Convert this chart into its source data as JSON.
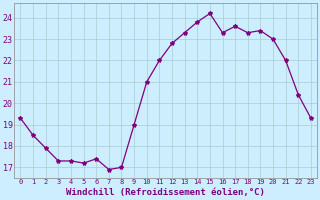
{
  "x": [
    0,
    1,
    2,
    3,
    4,
    5,
    6,
    7,
    8,
    9,
    10,
    11,
    12,
    13,
    14,
    15,
    16,
    17,
    18,
    19,
    20,
    21,
    22,
    23
  ],
  "y": [
    19.3,
    18.5,
    17.9,
    17.3,
    17.3,
    17.2,
    17.4,
    16.9,
    17.0,
    19.0,
    21.0,
    22.0,
    22.8,
    23.3,
    23.8,
    24.2,
    23.3,
    23.6,
    23.3,
    23.4,
    23.0,
    22.0,
    20.4,
    19.3
  ],
  "line_color": "#800080",
  "marker": "*",
  "marker_size": 3,
  "bg_color": "#cceeff",
  "grid_color": "#aacccc",
  "xlabel": "Windchill (Refroidissement éolien,°C)",
  "xlabel_color": "#800080",
  "yticks": [
    17,
    18,
    19,
    20,
    21,
    22,
    23,
    24
  ],
  "xticks": [
    0,
    1,
    2,
    3,
    4,
    5,
    6,
    7,
    8,
    9,
    10,
    11,
    12,
    13,
    14,
    15,
    16,
    17,
    18,
    19,
    20,
    21,
    22,
    23
  ],
  "ylim": [
    16.5,
    24.7
  ],
  "xlim": [
    -0.5,
    23.5
  ],
  "spine_color": "#888888"
}
